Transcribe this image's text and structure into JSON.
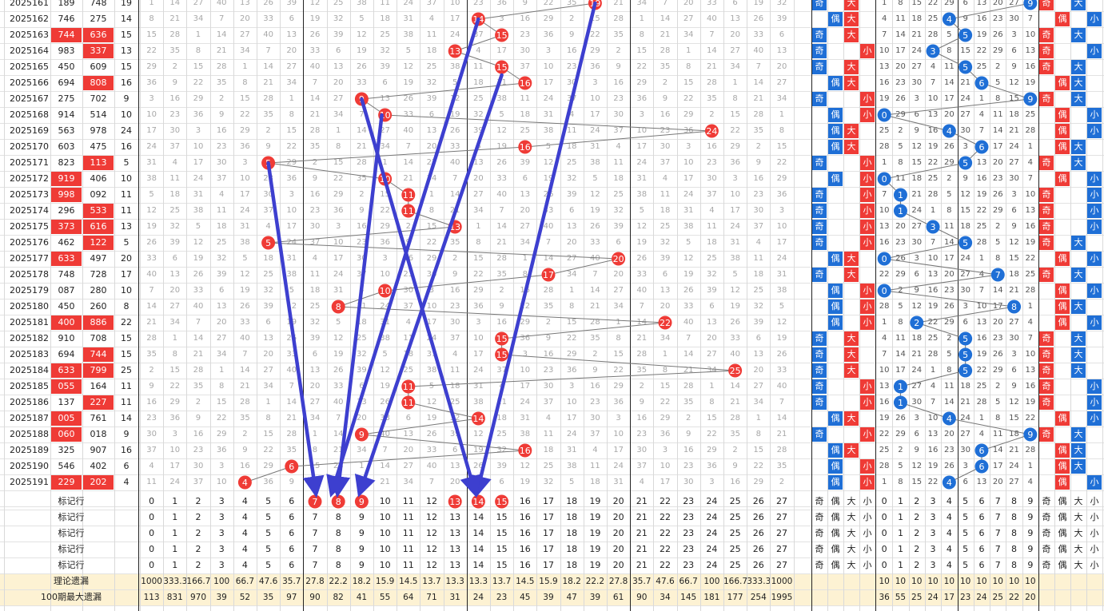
{
  "colors": {
    "red": "#ef3b36",
    "blue": "#1f6fd6",
    "arrow": "#3d3fcf",
    "footer_bg": "#fdf2d3",
    "gray_text": "#a8a8a8"
  },
  "footer_label_mark": "标记行",
  "footer_label_theory": "理论遗漏",
  "footer_label_max": "100期最大遗漏",
  "category_labels": [
    "奇",
    "偶",
    "大",
    "小"
  ],
  "chart_data": {
    "type": "table",
    "issues": [
      "2025161",
      "2025162",
      "2025163",
      "2025164",
      "2025165",
      "2025166",
      "2025167",
      "2025168",
      "2025169",
      "2025170",
      "2025171",
      "2025172",
      "2025173",
      "2025174",
      "2025175",
      "2025176",
      "2025177",
      "2025178",
      "2025179",
      "2025180",
      "2025181",
      "2025182",
      "2025183",
      "2025184",
      "2025185",
      "2025186",
      "2025187",
      "2025188",
      "2025189",
      "2025190",
      "2025191"
    ],
    "numbers_a": [
      "189",
      "746",
      "744",
      "983",
      "450",
      "694",
      "275",
      "914",
      "563",
      "603",
      "823",
      "919",
      "998",
      "296",
      "373",
      "462",
      "633",
      "748",
      "087",
      "450",
      "400",
      "910",
      "694",
      "633",
      "055",
      "137",
      "005",
      "060",
      "325",
      "546",
      "229"
    ],
    "a_highlight": [
      false,
      false,
      true,
      false,
      false,
      false,
      false,
      false,
      false,
      false,
      false,
      true,
      true,
      false,
      true,
      false,
      true,
      false,
      false,
      false,
      true,
      false,
      false,
      true,
      true,
      false,
      true,
      true,
      false,
      false,
      true
    ],
    "numbers_b": [
      "748",
      "275",
      "636",
      "337",
      "609",
      "808",
      "702",
      "514",
      "978",
      "475",
      "113",
      "406",
      "092",
      "533",
      "616",
      "122",
      "497",
      "728",
      "280",
      "260",
      "886",
      "708",
      "744",
      "799",
      "164",
      "227",
      "761",
      "018",
      "907",
      "402",
      "202"
    ],
    "b_highlight": [
      false,
      false,
      true,
      true,
      false,
      true,
      false,
      false,
      false,
      false,
      true,
      false,
      false,
      true,
      true,
      true,
      false,
      false,
      false,
      false,
      true,
      false,
      true,
      true,
      false,
      true,
      false,
      false,
      false,
      false,
      true
    ],
    "sums": [
      19,
      14,
      15,
      13,
      15,
      16,
      9,
      10,
      24,
      16,
      5,
      10,
      11,
      11,
      13,
      5,
      20,
      17,
      10,
      8,
      22,
      15,
      15,
      25,
      11,
      11,
      14,
      9,
      16,
      6,
      4
    ],
    "odd_even": [
      "奇",
      "偶",
      "奇",
      "奇",
      "奇",
      "偶",
      "奇",
      "偶",
      "偶",
      "偶",
      "奇",
      "偶",
      "奇",
      "奇",
      "奇",
      "奇",
      "偶",
      "奇",
      "偶",
      "偶",
      "偶",
      "奇",
      "奇",
      "奇",
      "奇",
      "奇",
      "偶",
      "奇",
      "偶",
      "偶",
      "偶"
    ],
    "size": [
      "大",
      "大",
      "大",
      "小",
      "大",
      "大",
      "小",
      "小",
      "大",
      "大",
      "小",
      "小",
      "小",
      "小",
      "小",
      "小",
      "大",
      "大",
      "小",
      "小",
      "小",
      "大",
      "大",
      "大",
      "小",
      "小",
      "大",
      "小",
      "大",
      "小",
      "小"
    ],
    "tail_hit": [
      9,
      4,
      5,
      3,
      5,
      6,
      9,
      0,
      4,
      6,
      5,
      0,
      1,
      1,
      3,
      5,
      0,
      7,
      0,
      8,
      2,
      5,
      5,
      5,
      1,
      1,
      4,
      9,
      6,
      6,
      4
    ],
    "tail_odd_even": [
      "奇",
      "偶",
      "奇",
      "奇",
      "奇",
      "偶",
      "奇",
      "偶",
      "偶",
      "偶",
      "奇",
      "偶",
      "奇",
      "奇",
      "奇",
      "奇",
      "偶",
      "奇",
      "偶",
      "偶",
      "偶",
      "奇",
      "奇",
      "奇",
      "奇",
      "奇",
      "偶",
      "奇",
      "偶",
      "偶",
      "偶"
    ],
    "tail_size": [
      "大",
      "小",
      "大",
      "小",
      "大",
      "大",
      "大",
      "小",
      "小",
      "大",
      "大",
      "小",
      "小",
      "小",
      "小",
      "大",
      "小",
      "大",
      "小",
      "大",
      "小",
      "大",
      "大",
      "大",
      "小",
      "小",
      "小",
      "大",
      "大",
      "大",
      "小"
    ],
    "marked_numbers_footer": [
      7,
      8,
      9,
      13,
      14,
      15
    ],
    "theory_missing": [
      "1000",
      "333.3",
      "166.7",
      "100",
      "66.7",
      "47.6",
      "35.7",
      "27.8",
      "22.2",
      "18.2",
      "15.9",
      "14.5",
      "13.7",
      "13.3",
      "13.3",
      "13.7",
      "14.5",
      "15.9",
      "18.2",
      "22.2",
      "27.8",
      "35.7",
      "47.6",
      "66.7",
      "100",
      "166.7",
      "333.3",
      "1000"
    ],
    "theory_missing_tail": [
      "10",
      "10",
      "10",
      "10",
      "10",
      "10",
      "10",
      "10",
      "10",
      "10"
    ],
    "max_missing_100": [
      "113",
      "831",
      "970",
      "39",
      "52",
      "35",
      "97",
      "90",
      "82",
      "41",
      "55",
      "64",
      "71",
      "31",
      "24",
      "23",
      "45",
      "39",
      "47",
      "39",
      "61",
      "90",
      "34",
      "145",
      "181",
      "177",
      "254",
      "1995"
    ],
    "max_missing_tail": [
      "36",
      "55",
      "25",
      "24",
      "17",
      "23",
      "24",
      "25",
      "22",
      "20"
    ],
    "sum_range": [
      0,
      27
    ],
    "tail_range": [
      0,
      9
    ]
  }
}
